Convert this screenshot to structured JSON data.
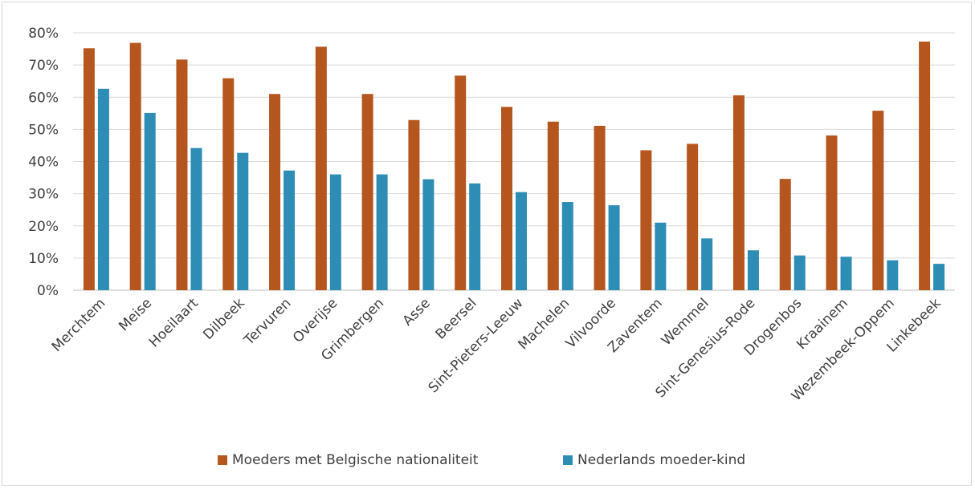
{
  "chart_data": {
    "type": "bar",
    "categories": [
      "Merchtem",
      "Meise",
      "Hoeilaart",
      "Dilbeek",
      "Tervuren",
      "Overijse",
      "Grimbergen",
      "Asse",
      "Beersel",
      "Sint-Pieters-Leeuw",
      "Machelen",
      "Vilvoorde",
      "Zaventem",
      "Wemmel",
      "Sint-Genesius-Rode",
      "Drogenbos",
      "Kraainem",
      "Wezembeek-Oppem",
      "Linkebeek"
    ],
    "series": [
      {
        "name": "Moeders met Belgische nationaliteit",
        "color": "#b5561e",
        "values": [
          75.2,
          76.9,
          71.7,
          65.9,
          61.0,
          75.7,
          61.0,
          52.9,
          66.7,
          57.0,
          52.4,
          51.1,
          43.5,
          45.5,
          60.6,
          34.6,
          48.1,
          55.8,
          77.3
        ]
      },
      {
        "name": "Nederlands moeder-kind",
        "color": "#2e8db5",
        "values": [
          62.6,
          55.1,
          44.2,
          42.7,
          37.2,
          36.0,
          36.0,
          34.5,
          33.2,
          30.5,
          27.4,
          26.4,
          21.0,
          16.1,
          12.4,
          10.8,
          10.4,
          9.3,
          8.2
        ]
      }
    ],
    "ylim": [
      0,
      80
    ],
    "yticks": [
      "0%",
      "10%",
      "20%",
      "30%",
      "40%",
      "50%",
      "60%",
      "70%",
      "80%"
    ],
    "grid": true,
    "legend": "bottom",
    "xlabel": "",
    "ylabel": "",
    "title": ""
  }
}
